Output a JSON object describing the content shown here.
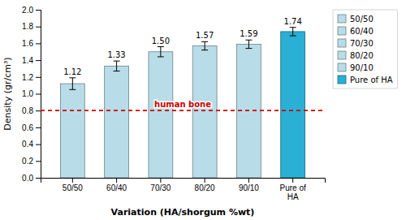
{
  "chart_data": {
    "type": "bar",
    "categories": [
      "50/50",
      "60/40",
      "70/30",
      "80/20",
      "90/10",
      "Pure of\nHA"
    ],
    "values": [
      1.12,
      1.33,
      1.5,
      1.57,
      1.59,
      1.74
    ],
    "errors": [
      0.07,
      0.06,
      0.06,
      0.05,
      0.05,
      0.05
    ],
    "value_labels": [
      "1.12",
      "1.33",
      "1.50",
      "1.57",
      "1.59",
      "1.74"
    ],
    "data_labels": true,
    "colors": [
      "#b8dde8",
      "#b8dde8",
      "#b8dde8",
      "#b8dde8",
      "#b8dde8",
      "#2ab0d4"
    ],
    "xlabel": "Variation (HA/shorgum %wt)",
    "ylabel": "Density (gr/cm³)",
    "ylim": [
      0,
      2.0
    ],
    "yticks": [
      {
        "value": 0,
        "label": "0.0"
      },
      0.2,
      0.4,
      0.6,
      0.8,
      {
        "value": 1.0,
        "label": "1.0"
      },
      1.2,
      1.4,
      1.6,
      1.8,
      {
        "value": 2.0,
        "label": "2.0"
      }
    ],
    "grid": false,
    "legend": "right",
    "legend_labels": [
      "50/50",
      "60/40",
      "70/30",
      "80/20",
      "90/10",
      "Pure of HA"
    ],
    "annotations": [
      {
        "y": 0.8,
        "text": "human bone",
        "color": "#cc0000",
        "line_style": "dashed"
      }
    ]
  }
}
